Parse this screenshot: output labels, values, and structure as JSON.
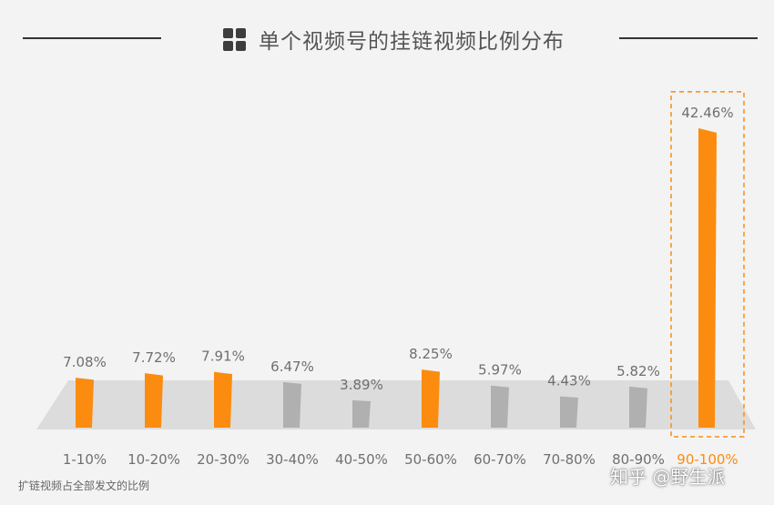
{
  "title": "单个视频号的挂链视频比例分布",
  "footnote": "扩链视频占全部发文的比例",
  "watermark": "知乎 @野生派",
  "colors": {
    "highlight": "#fb8c0f",
    "normal": "#b0b0b0",
    "label": "#6f6f6f",
    "floor": "#dcdcdc"
  },
  "chart_data": {
    "type": "bar",
    "categories": [
      "1-10%",
      "10-20%",
      "20-30%",
      "30-40%",
      "40-50%",
      "50-60%",
      "60-70%",
      "70-80%",
      "80-90%",
      "90-100%"
    ],
    "values": [
      7.08,
      7.72,
      7.91,
      6.47,
      3.89,
      8.25,
      5.97,
      4.43,
      5.82,
      42.46
    ],
    "value_labels": [
      "7.08%",
      "7.72%",
      "7.91%",
      "6.47%",
      "3.89%",
      "8.25%",
      "5.97%",
      "4.43%",
      "5.82%",
      "42.46%"
    ],
    "highlighted": [
      true,
      true,
      true,
      false,
      false,
      true,
      false,
      false,
      false,
      true
    ],
    "emphasized_category": "90-100%",
    "title": "单个视频号的挂链视频比例分布",
    "xlabel": "",
    "ylabel": "",
    "legend": "none",
    "grid": false
  }
}
